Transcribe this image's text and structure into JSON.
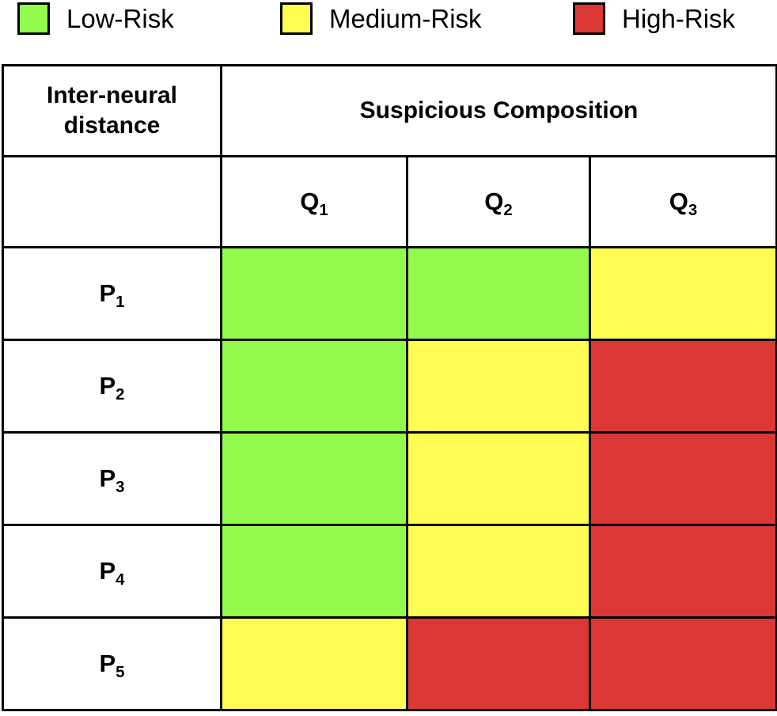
{
  "legend": {
    "items": [
      {
        "label": "Low-Risk",
        "risk": "low"
      },
      {
        "label": "Medium-Risk",
        "risk": "medium"
      },
      {
        "label": "High-Risk",
        "risk": "high"
      }
    ]
  },
  "risk_colors": {
    "low": "#92FB4E",
    "medium": "#FFFC52",
    "high": "#DB3735"
  },
  "table": {
    "corner_header": "Inter-neural distance",
    "group_header": "Suspicious Composition",
    "columns": [
      {
        "base": "Q",
        "sub": "1"
      },
      {
        "base": "Q",
        "sub": "2"
      },
      {
        "base": "Q",
        "sub": "3"
      }
    ],
    "rows": [
      {
        "base": "P",
        "sub": "1",
        "cells": [
          "low",
          "low",
          "medium"
        ]
      },
      {
        "base": "P",
        "sub": "2",
        "cells": [
          "low",
          "medium",
          "high"
        ]
      },
      {
        "base": "P",
        "sub": "3",
        "cells": [
          "low",
          "medium",
          "high"
        ]
      },
      {
        "base": "P",
        "sub": "4",
        "cells": [
          "low",
          "medium",
          "high"
        ]
      },
      {
        "base": "P",
        "sub": "5",
        "cells": [
          "medium",
          "high",
          "high"
        ]
      }
    ]
  },
  "chart_data": {
    "type": "heatmap",
    "title": "",
    "row_axis_label": "Inter-neural distance",
    "column_axis_label": "Suspicious Composition",
    "rows": [
      "P1",
      "P2",
      "P3",
      "P4",
      "P5"
    ],
    "columns": [
      "Q1",
      "Q2",
      "Q3"
    ],
    "values": [
      [
        "low",
        "low",
        "medium"
      ],
      [
        "low",
        "medium",
        "high"
      ],
      [
        "low",
        "medium",
        "high"
      ],
      [
        "low",
        "medium",
        "high"
      ],
      [
        "medium",
        "high",
        "high"
      ]
    ],
    "legend_entries": [
      "Low-Risk",
      "Medium-Risk",
      "High-Risk"
    ],
    "legend_colors": {
      "Low-Risk": "#92FB4E",
      "Medium-Risk": "#FFFC52",
      "High-Risk": "#DB3735"
    },
    "legend_position": "top",
    "grid": true
  }
}
